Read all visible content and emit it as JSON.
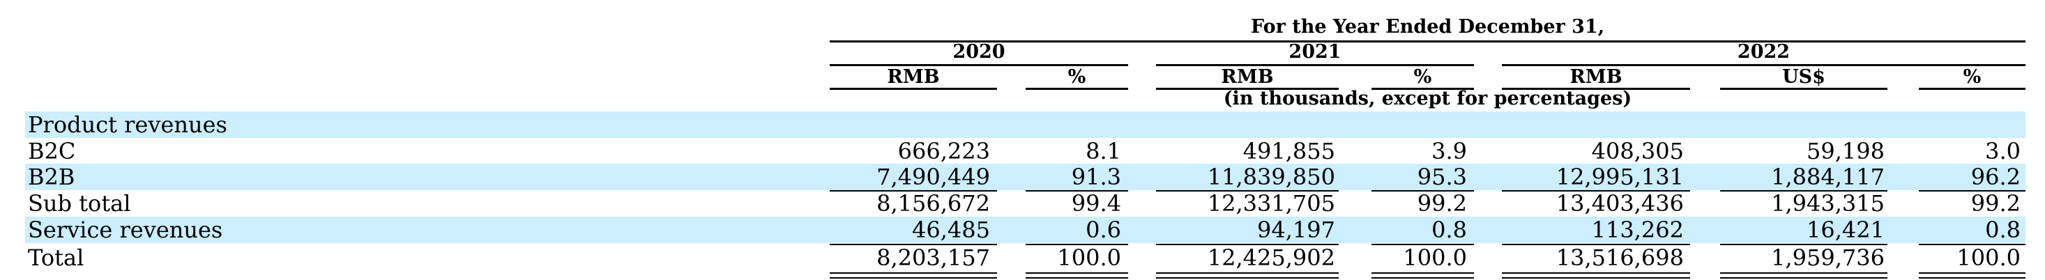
{
  "header": {
    "period_title": "For the Year Ended December 31,",
    "years": [
      "2020",
      "2021",
      "2022"
    ],
    "currencies": [
      "RMB",
      "%",
      "RMB",
      "%",
      "RMB",
      "US$",
      "%"
    ],
    "unit_note": "(in thousands, except for percentages)"
  },
  "rows": [
    {
      "label": "Product revenues",
      "values": [
        "",
        "",
        "",
        "",
        "",
        "",
        ""
      ]
    },
    {
      "label": "B2C",
      "values": [
        "666,223",
        "8.1",
        "491,855",
        "3.9",
        "408,305",
        "59,198",
        "3.0"
      ]
    },
    {
      "label": "B2B",
      "values": [
        "7,490,449",
        "91.3",
        "11,839,850",
        "95.3",
        "12,995,131",
        "1,884,117",
        "96.2"
      ]
    },
    {
      "label": "Sub total",
      "values": [
        "8,156,672",
        "99.4",
        "12,331,705",
        "99.2",
        "13,403,436",
        "1,943,315",
        "99.2"
      ]
    },
    {
      "label": "Service revenues",
      "values": [
        "46,485",
        "0.6",
        "94,197",
        "0.8",
        "113,262",
        "16,421",
        "0.8"
      ]
    },
    {
      "label": "Total",
      "values": [
        "8,203,157",
        "100.0",
        "12,425,902",
        "100.0",
        "13,516,698",
        "1,959,736",
        "100.0"
      ]
    }
  ],
  "colors": {
    "band": "#cceeff",
    "text": "#000000"
  }
}
